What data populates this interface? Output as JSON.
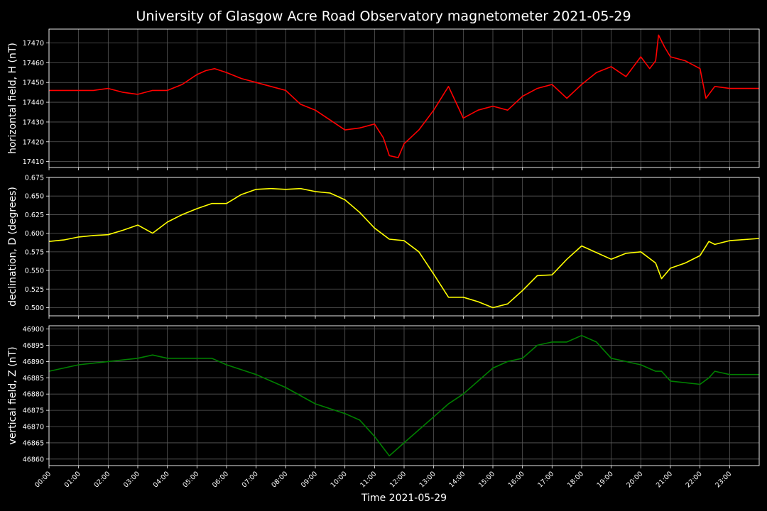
{
  "chart_data": {
    "type": "line",
    "title": "University of Glasgow Acre Road Observatory magnetometer 2021-05-29",
    "xlabel": "Time 2021-05-29",
    "x_tick_labels": [
      "00:00",
      "01:00",
      "02:00",
      "03:00",
      "04:00",
      "05:00",
      "06:00",
      "07:00",
      "08:00",
      "09:00",
      "10:00",
      "11:00",
      "12:00",
      "13:00",
      "14:00",
      "15:00",
      "16:00",
      "17:00",
      "18:00",
      "19:00",
      "20:00",
      "21:00",
      "22:00",
      "23:00"
    ],
    "xlim": [
      0,
      24
    ],
    "grid": true,
    "panels": [
      {
        "ylabel": "horizontal field, H (nT)",
        "color": "#ff0000",
        "ylim": [
          17407,
          17477
        ],
        "yticks": [
          17410,
          17420,
          17430,
          17440,
          17450,
          17460,
          17470
        ],
        "x": [
          0,
          0.5,
          1,
          1.5,
          2,
          2.5,
          3,
          3.5,
          4,
          4.5,
          5,
          5.3,
          5.6,
          6,
          6.5,
          7,
          7.5,
          8,
          8.5,
          9,
          9.5,
          10,
          10.5,
          11,
          11.3,
          11.5,
          11.8,
          12,
          12.5,
          13,
          13.5,
          14,
          14.5,
          15,
          15.5,
          16,
          16.5,
          17,
          17.5,
          18,
          18.5,
          19,
          19.5,
          20,
          20.3,
          20.5,
          20.6,
          20.8,
          21,
          21.5,
          22,
          22.2,
          22.5,
          23,
          24
        ],
        "y": [
          17446,
          17446,
          17446,
          17446,
          17447,
          17445,
          17444,
          17446,
          17446,
          17449,
          17454,
          17456,
          17457,
          17455,
          17452,
          17450,
          17448,
          17446,
          17439,
          17436,
          17431,
          17426,
          17427,
          17429,
          17422,
          17413,
          17412,
          17419,
          17426,
          17436,
          17448,
          17432,
          17436,
          17438,
          17436,
          17443,
          17447,
          17449,
          17442,
          17449,
          17455,
          17458,
          17453,
          17463,
          17457,
          17461,
          17474,
          17468,
          17463,
          17461,
          17457,
          17442,
          17448,
          17447,
          17447
        ]
      },
      {
        "ylabel": "declination, D (degrees)",
        "color": "#ffff00",
        "ylim": [
          0.489,
          0.675
        ],
        "yticks": [
          0.5,
          0.525,
          0.55,
          0.575,
          0.6,
          0.625,
          0.65,
          0.675
        ],
        "ytick_labels": [
          "0.500",
          "0.525",
          "0.550",
          "0.575",
          "0.600",
          "0.625",
          "0.650",
          "0.675"
        ],
        "x": [
          0,
          0.5,
          1,
          1.5,
          2,
          2.5,
          3,
          3.5,
          4,
          4.5,
          5,
          5.5,
          6,
          6.5,
          7,
          7.5,
          8,
          8.5,
          9,
          9.5,
          10,
          10.5,
          11,
          11.5,
          12,
          12.5,
          13,
          13.5,
          14,
          14.5,
          15,
          15.5,
          16,
          16.5,
          17,
          17.5,
          18,
          18.5,
          19,
          19.5,
          20,
          20.5,
          20.7,
          21,
          21.5,
          22,
          22.3,
          22.5,
          23,
          24
        ],
        "y": [
          0.589,
          0.591,
          0.595,
          0.597,
          0.598,
          0.604,
          0.611,
          0.6,
          0.615,
          0.625,
          0.633,
          0.64,
          0.64,
          0.652,
          0.659,
          0.66,
          0.659,
          0.66,
          0.656,
          0.654,
          0.645,
          0.628,
          0.607,
          0.592,
          0.59,
          0.575,
          0.545,
          0.514,
          0.514,
          0.508,
          0.5,
          0.505,
          0.523,
          0.543,
          0.544,
          0.565,
          0.583,
          0.574,
          0.565,
          0.573,
          0.575,
          0.56,
          0.539,
          0.553,
          0.56,
          0.57,
          0.589,
          0.585,
          0.59,
          0.593
        ]
      },
      {
        "ylabel": "vertical field, Z (nT)",
        "color": "#008000",
        "ylim": [
          46858,
          46901
        ],
        "yticks": [
          46860,
          46865,
          46870,
          46875,
          46880,
          46885,
          46890,
          46895,
          46900
        ],
        "x": [
          0,
          1,
          2,
          3,
          3.5,
          4,
          5,
          5.5,
          6,
          7,
          8,
          9,
          10,
          10.5,
          11,
          11.5,
          12,
          13,
          13.5,
          14,
          15,
          15.5,
          16,
          16.5,
          17,
          17.5,
          18,
          18.5,
          19,
          19.5,
          20,
          20.5,
          20.7,
          21,
          22,
          22.3,
          22.5,
          23,
          24
        ],
        "y": [
          46887,
          46889,
          46890,
          46891,
          46892,
          46891,
          46891,
          46891,
          46889,
          46886,
          46882,
          46877,
          46874,
          46872,
          46867,
          46861,
          46865,
          46873,
          46877,
          46880,
          46888,
          46890,
          46891,
          46895,
          46896,
          46896,
          46898,
          46896,
          46891,
          46890,
          46889,
          46887,
          46887,
          46884,
          46883,
          46885,
          46887,
          46886,
          46886
        ]
      }
    ]
  }
}
